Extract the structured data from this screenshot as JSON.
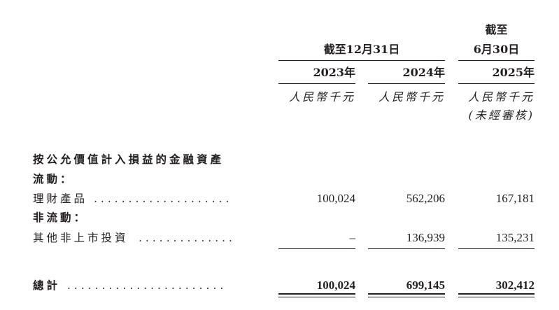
{
  "header": {
    "group_label": "截至12月31日",
    "col3_label_line1": "截至",
    "col3_label_line2": "6月30日",
    "years": [
      "2023年",
      "2024年",
      "2025年"
    ],
    "units": [
      "人民幣千元",
      "人民幣千元",
      "人民幣千元"
    ],
    "unaudited": "(未經審核)"
  },
  "section_title": "按公允價值計入損益的金融資產",
  "current_label": "流動：",
  "noncurrent_label": "非流動：",
  "rows": [
    {
      "label": "理財產品",
      "values": [
        "100,024",
        "562,206",
        "167,181"
      ]
    },
    {
      "label": "其他非上市投資",
      "values": [
        "–",
        "136,939",
        "135,231"
      ]
    }
  ],
  "total": {
    "label": "總計",
    "values": [
      "100,024",
      "699,145",
      "302,412"
    ]
  }
}
